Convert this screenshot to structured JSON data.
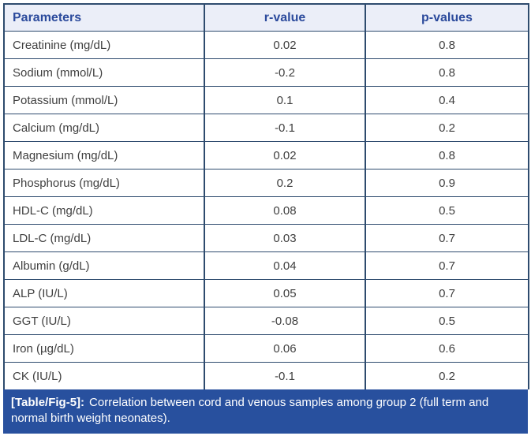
{
  "colors": {
    "border": "#2e4b6e",
    "header_bg": "#ebeef8",
    "header_text": "#2b4a9c",
    "body_text": "#3f3f3f",
    "caption_bg": "#28509e",
    "caption_text": "#ffffff"
  },
  "table": {
    "columns": [
      "Parameters",
      "r-value",
      "p-values"
    ],
    "rows": [
      {
        "parameter": "Creatinine (mg/dL)",
        "r": "0.02",
        "p": "0.8"
      },
      {
        "parameter": "Sodium (mmol/L)",
        "r": "-0.2",
        "p": "0.8"
      },
      {
        "parameter": "Potassium (mmol/L)",
        "r": "0.1",
        "p": "0.4"
      },
      {
        "parameter": "Calcium (mg/dL)",
        "r": "-0.1",
        "p": "0.2"
      },
      {
        "parameter": "Magnesium (mg/dL)",
        "r": "0.02",
        "p": "0.8"
      },
      {
        "parameter": "Phosphorus (mg/dL)",
        "r": "0.2",
        "p": "0.9"
      },
      {
        "parameter": "HDL-C (mg/dL)",
        "r": "0.08",
        "p": "0.5"
      },
      {
        "parameter": "LDL-C (mg/dL)",
        "r": "0.03",
        "p": "0.7"
      },
      {
        "parameter": "Albumin (g/dL)",
        "r": "0.04",
        "p": "0.7"
      },
      {
        "parameter": "ALP (IU/L)",
        "r": "0.05",
        "p": "0.7"
      },
      {
        "parameter": "GGT (IU/L)",
        "r": "-0.08",
        "p": "0.5"
      },
      {
        "parameter": "Iron (µg/dL)",
        "r": "0.06",
        "p": "0.6"
      },
      {
        "parameter": "CK (IU/L)",
        "r": "-0.1",
        "p": "0.2"
      }
    ],
    "caption": {
      "label": "[Table/Fig-5]:",
      "text": "Correlation between cord and venous samples among group 2 (full term and normal birth weight neonates)."
    }
  }
}
